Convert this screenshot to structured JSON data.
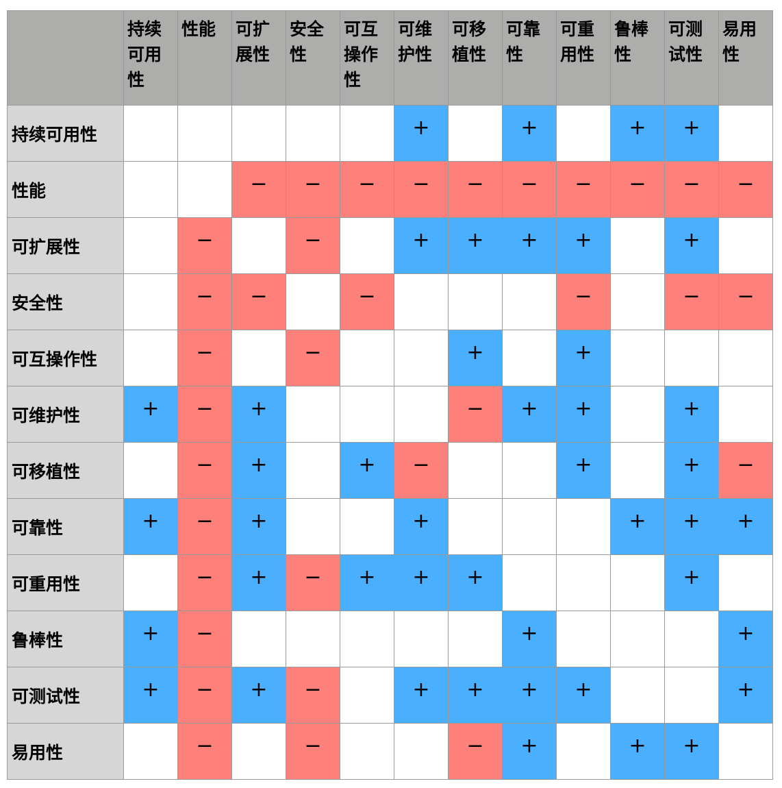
{
  "columns": [
    "持续可用性",
    "性能",
    "可扩展性",
    "安全性",
    "可互操作性",
    "可维护性",
    "可移植性",
    "可靠性",
    "可重用性",
    "鲁棒性",
    "可测试性",
    "易用性"
  ],
  "rows": [
    {
      "label": "持续可用性",
      "cells": [
        "",
        "",
        "",
        "",
        "",
        "+",
        "",
        "+",
        "",
        "+",
        "+",
        ""
      ]
    },
    {
      "label": "性能",
      "cells": [
        "",
        "",
        "−",
        "−",
        "−",
        "−",
        "−",
        "−",
        "−",
        "−",
        "−",
        "−"
      ]
    },
    {
      "label": "可扩展性",
      "cells": [
        "",
        "−",
        "",
        "−",
        "",
        "+",
        "+",
        "+",
        "+",
        "",
        "+",
        ""
      ]
    },
    {
      "label": "安全性",
      "cells": [
        "",
        "−",
        "−",
        "",
        "−",
        "",
        "",
        "",
        "−",
        "",
        "−",
        "−"
      ]
    },
    {
      "label": "可互操作性",
      "cells": [
        "",
        "−",
        "",
        "−",
        "",
        "",
        "+",
        "",
        "+",
        "",
        "",
        ""
      ]
    },
    {
      "label": "可维护性",
      "cells": [
        "+",
        "−",
        "+",
        "",
        "",
        "",
        "−",
        "+",
        "+",
        "",
        "+",
        ""
      ]
    },
    {
      "label": "可移植性",
      "cells": [
        "",
        "−",
        "+",
        "",
        "+",
        "−",
        "",
        "",
        "+",
        "",
        "+",
        "−"
      ]
    },
    {
      "label": "可靠性",
      "cells": [
        "+",
        "−",
        "+",
        "",
        "",
        "+",
        "",
        "",
        "",
        "+",
        "+",
        "+"
      ]
    },
    {
      "label": "可重用性",
      "cells": [
        "",
        "−",
        "+",
        "−",
        "+",
        "+",
        "+",
        "",
        "",
        "",
        "+",
        ""
      ]
    },
    {
      "label": "鲁棒性",
      "cells": [
        "+",
        "−",
        "",
        "",
        "",
        "",
        "",
        "+",
        "",
        "",
        "",
        "+"
      ]
    },
    {
      "label": "可测试性",
      "cells": [
        "+",
        "−",
        "+",
        "−",
        "",
        "+",
        "+",
        "+",
        "+",
        "",
        "",
        "+"
      ]
    },
    {
      "label": "易用性",
      "cells": [
        "",
        "−",
        "",
        "−",
        "",
        "",
        "−",
        "+",
        "",
        "+",
        "+",
        ""
      ]
    }
  ],
  "colors": {
    "positive": "#4aafff",
    "negative": "#fd817a",
    "header": "#adaeac",
    "row_header": "#d6d6d6"
  }
}
